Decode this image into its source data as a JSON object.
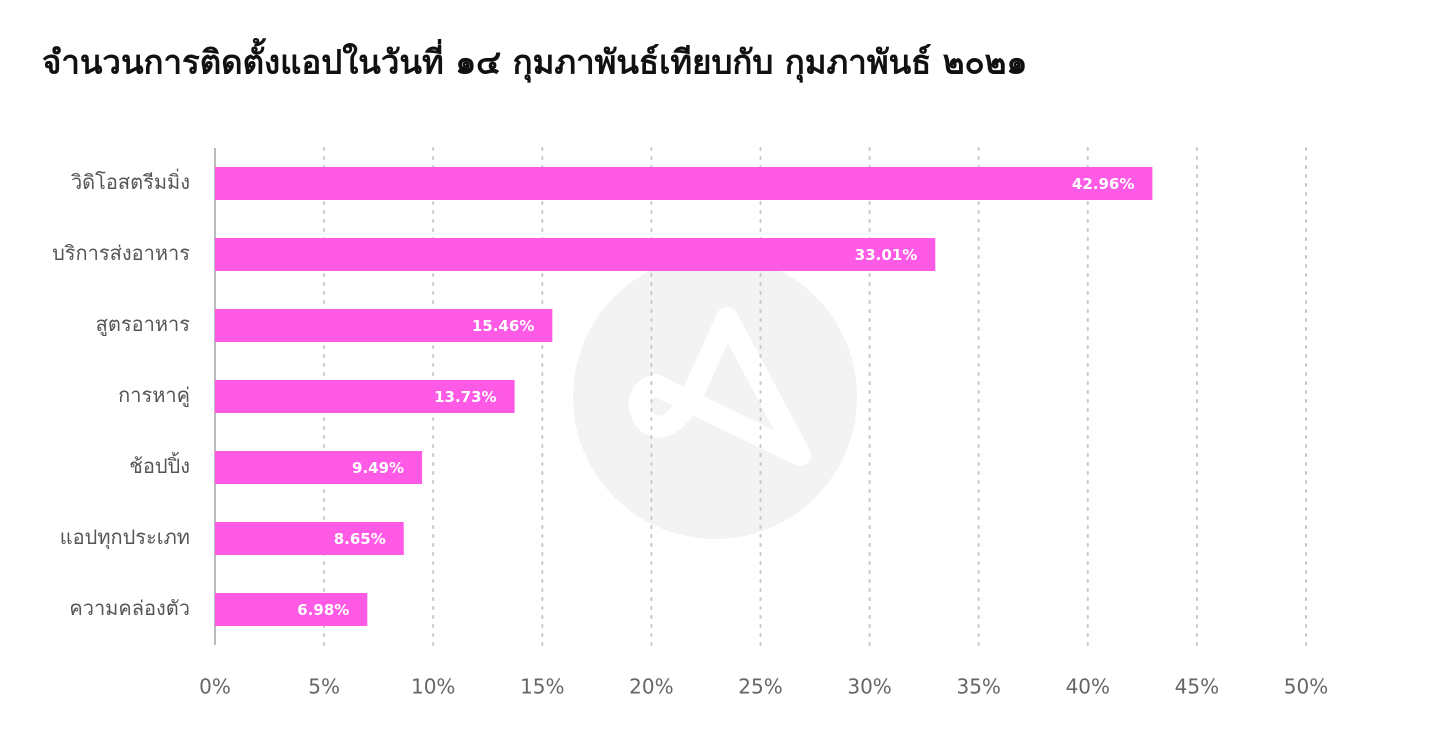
{
  "chart_data": {
    "type": "barh",
    "title": "จำนวนการติดตั้งแอปในวันที่ ๑๔ กุมภาพันธ์เทียบกับ กุมภาพันธ์ ๒๐๒๑",
    "categories": [
      "วิดิโอสตรีมมิ่ง",
      "บริการส่งอาหาร",
      "สูตรอาหาร",
      "การหาคู่",
      "ช้อปปิ้ง",
      "แอปทุกประเภท",
      "ความคล่องตัว"
    ],
    "values": [
      42.96,
      33.01,
      15.46,
      13.73,
      9.49,
      8.65,
      6.98
    ],
    "value_labels": [
      "42.96%",
      "33.01%",
      "15.46%",
      "13.73%",
      "9.49%",
      "8.65%",
      "6.98%"
    ],
    "color": "#ff5ae6",
    "xlim": [
      0,
      50
    ],
    "xticks": [
      {
        "value": 0,
        "label": "0%"
      },
      {
        "value": 5,
        "label": "5%"
      },
      {
        "value": 10,
        "label": "10%"
      },
      {
        "value": 15,
        "label": "15%"
      },
      {
        "value": 20,
        "label": "20%"
      },
      {
        "value": 25,
        "label": "25%"
      },
      {
        "value": 30,
        "label": "30%"
      },
      {
        "value": 35,
        "label": "35%"
      },
      {
        "value": 40,
        "label": "40%"
      },
      {
        "value": 45,
        "label": "45%"
      },
      {
        "value": 50,
        "label": "50%"
      }
    ],
    "grid": true
  }
}
